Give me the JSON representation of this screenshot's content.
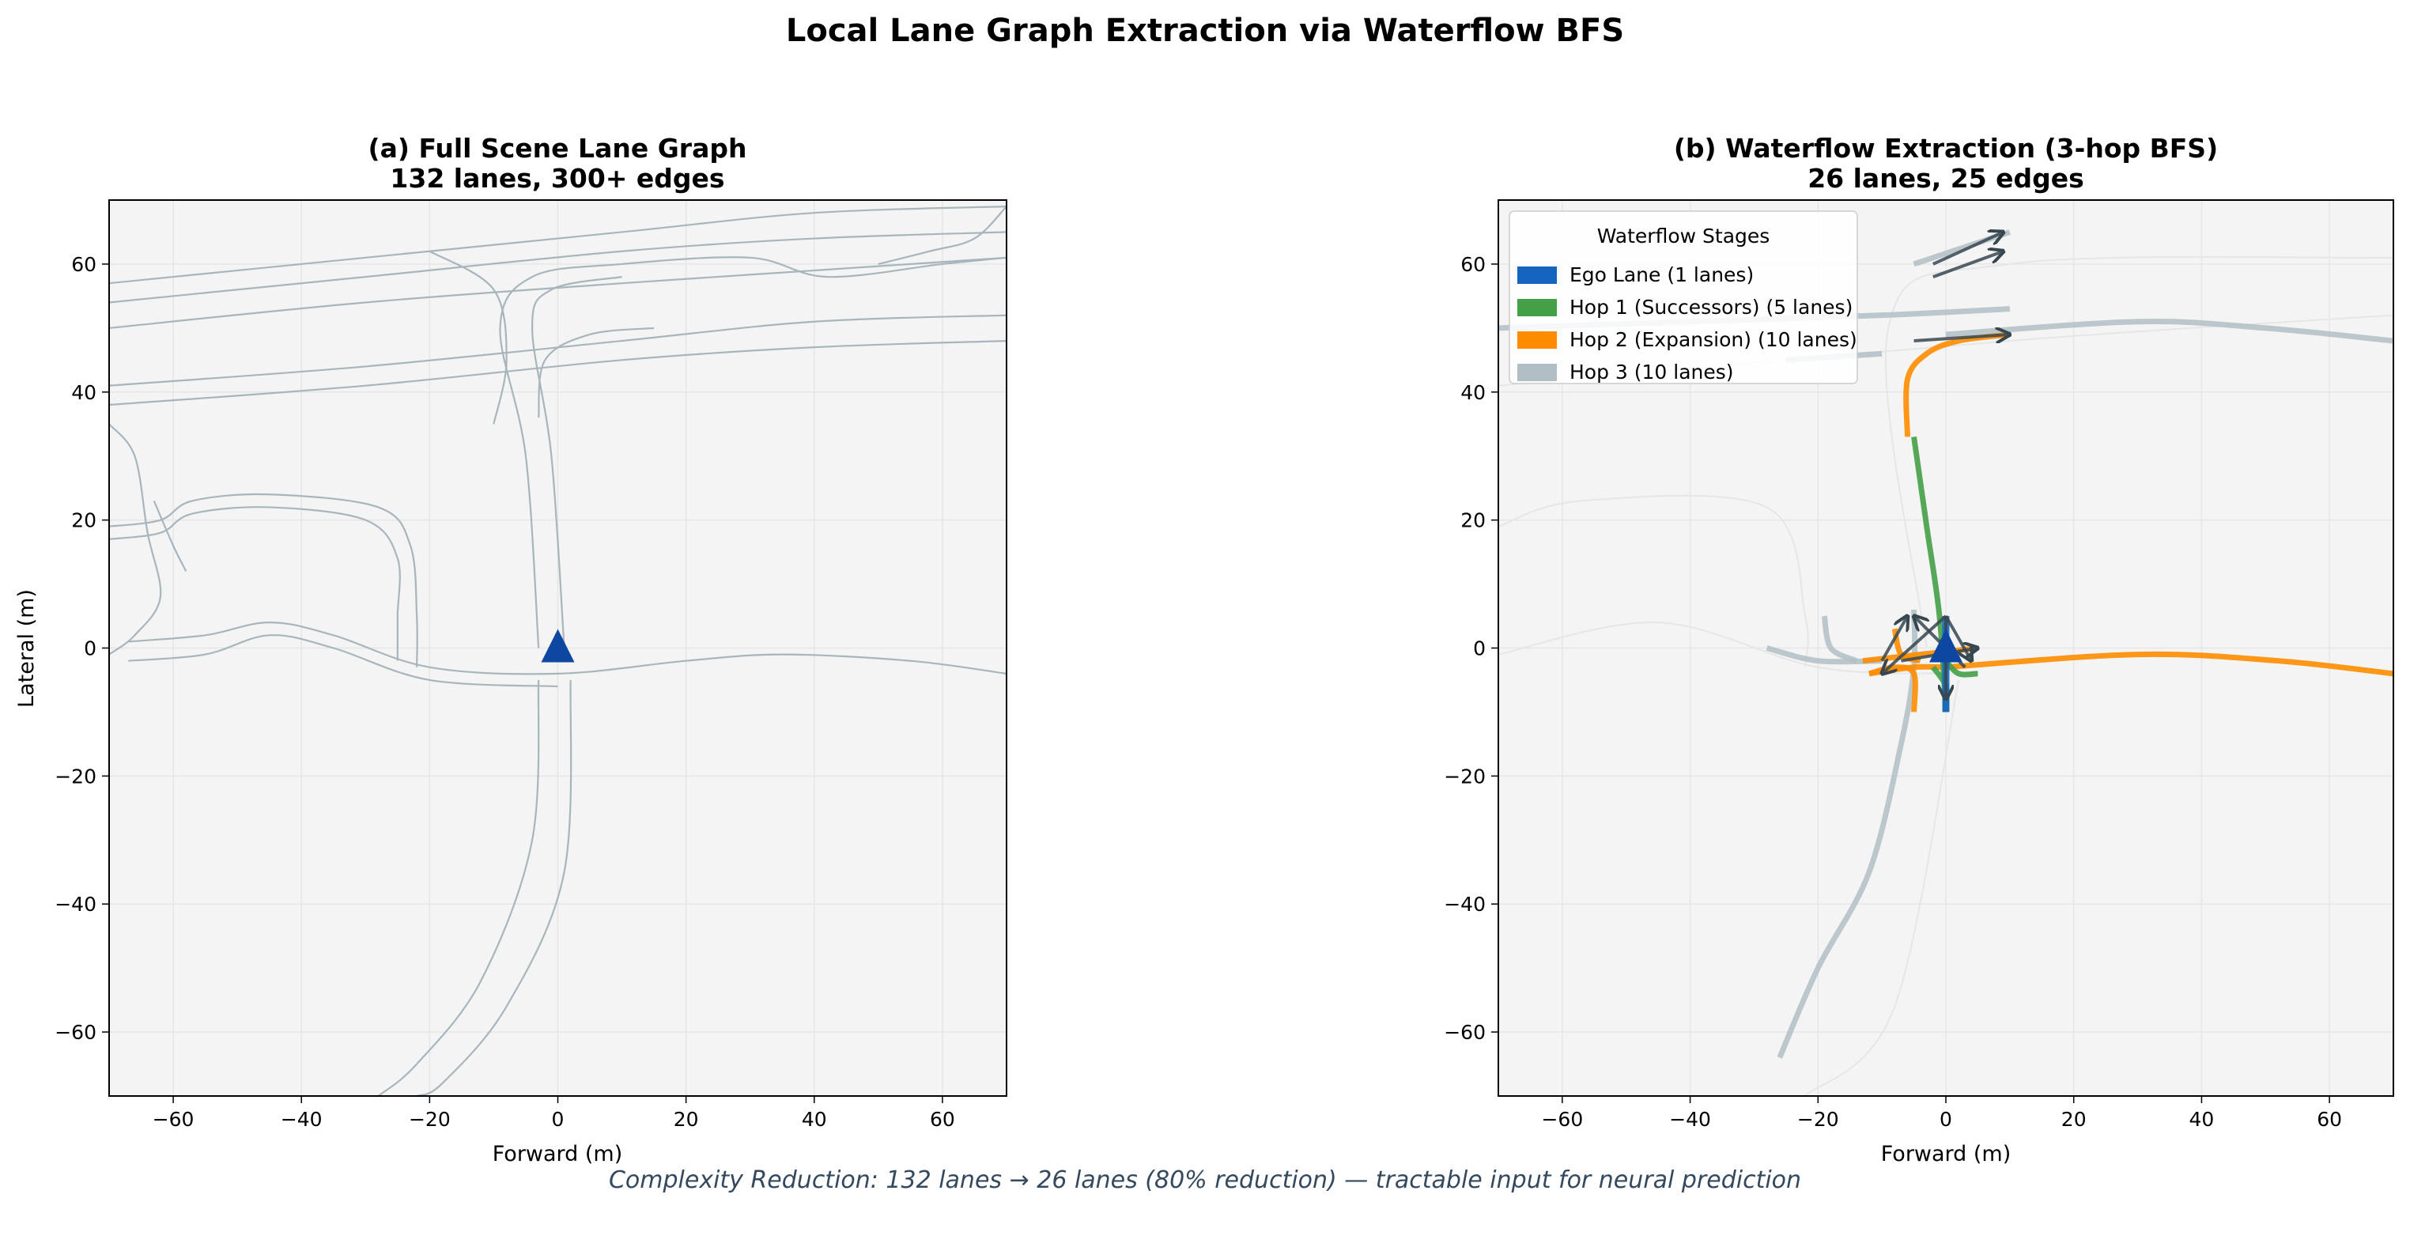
{
  "figure": {
    "title": "Local Lane Graph Extraction via Waterflow BFS",
    "caption": "Complexity Reduction: 132 lanes → 26 lanes (80% reduction) — tractable input for neural prediction"
  },
  "colors": {
    "ego": "#1565c0",
    "hop1": "#43a047",
    "hop2": "#ff8c00",
    "hop3": "#b0bec5",
    "edge": "#37474f",
    "lane": "#a8b5bd",
    "ego_marker": "#0d47a1",
    "axes_bg": "#f4f4f4"
  },
  "chart_data": [
    {
      "type": "line",
      "title_line1": "(a) Full Scene Lane Graph",
      "title_line2": "132 lanes, 300+ edges",
      "xlabel": "Forward (m)",
      "ylabel": "Lateral (m)",
      "xlim": [
        -70,
        70
      ],
      "ylim": [
        -70,
        70
      ],
      "xticks": [
        -60,
        -40,
        -20,
        0,
        20,
        40,
        60
      ],
      "yticks": [
        -60,
        -40,
        -20,
        0,
        20,
        40,
        60
      ],
      "grid": true,
      "ego_position": [
        0,
        0
      ],
      "lanes": [
        [
          [
            -70,
            57
          ],
          [
            -30,
            61
          ],
          [
            10,
            65
          ],
          [
            40,
            68
          ],
          [
            70,
            69
          ]
        ],
        [
          [
            -70,
            54
          ],
          [
            -30,
            58
          ],
          [
            10,
            62
          ],
          [
            40,
            64
          ],
          [
            70,
            65
          ]
        ],
        [
          [
            -70,
            50
          ],
          [
            -30,
            54
          ],
          [
            10,
            57
          ],
          [
            40,
            59
          ],
          [
            70,
            61
          ]
        ],
        [
          [
            -70,
            41
          ],
          [
            -30,
            44
          ],
          [
            10,
            48
          ],
          [
            40,
            51
          ],
          [
            70,
            52
          ]
        ],
        [
          [
            -70,
            38
          ],
          [
            -30,
            41
          ],
          [
            10,
            45
          ],
          [
            40,
            47
          ],
          [
            70,
            48
          ]
        ],
        [
          [
            -20,
            62
          ],
          [
            -10,
            56
          ],
          [
            -8,
            45
          ],
          [
            -10,
            35
          ]
        ],
        [
          [
            -3,
            0
          ],
          [
            -5,
            30
          ],
          [
            -9,
            50
          ],
          [
            -4,
            58
          ],
          [
            10,
            60
          ],
          [
            30,
            61
          ],
          [
            42,
            58
          ],
          [
            60,
            60
          ],
          [
            70,
            61
          ]
        ],
        [
          [
            1,
            0
          ],
          [
            -1,
            30
          ],
          [
            -4,
            50
          ],
          [
            -1,
            56
          ],
          [
            10,
            58
          ]
        ],
        [
          [
            -3,
            36
          ],
          [
            -2,
            45
          ],
          [
            5,
            49
          ],
          [
            15,
            50
          ]
        ],
        [
          [
            -67,
            1
          ],
          [
            -55,
            2
          ],
          [
            -45,
            4
          ],
          [
            -35,
            2
          ],
          [
            -20,
            -3
          ],
          [
            0,
            -4
          ],
          [
            20,
            -2
          ],
          [
            35,
            -1
          ],
          [
            55,
            -2
          ],
          [
            70,
            -4
          ]
        ],
        [
          [
            -67,
            -2
          ],
          [
            -55,
            -1
          ],
          [
            -45,
            2
          ],
          [
            -35,
            0
          ],
          [
            -20,
            -5
          ],
          [
            0,
            -6
          ]
        ],
        [
          [
            -70,
            19
          ],
          [
            -62,
            20
          ],
          [
            -57,
            23
          ],
          [
            -45,
            24
          ],
          [
            -28,
            22
          ],
          [
            -23,
            16
          ],
          [
            -22,
            5
          ],
          [
            -22,
            -3
          ]
        ],
        [
          [
            -70,
            17
          ],
          [
            -62,
            18
          ],
          [
            -57,
            21
          ],
          [
            -45,
            22
          ],
          [
            -30,
            20
          ],
          [
            -25,
            14
          ],
          [
            -25,
            5
          ],
          [
            -25,
            -2
          ]
        ],
        [
          [
            -63,
            23
          ],
          [
            -60,
            16
          ],
          [
            -58,
            12
          ]
        ],
        [
          [
            -70,
            35
          ],
          [
            -66,
            30
          ],
          [
            -64,
            18
          ],
          [
            -62,
            8
          ],
          [
            -66,
            2
          ],
          [
            -70,
            -1
          ]
        ],
        [
          [
            -3,
            -5
          ],
          [
            -4,
            -30
          ],
          [
            -12,
            -52
          ],
          [
            -22,
            -65
          ],
          [
            -28,
            -70
          ]
        ],
        [
          [
            2,
            -5
          ],
          [
            1,
            -35
          ],
          [
            -8,
            -56
          ],
          [
            -18,
            -68
          ],
          [
            -22,
            -70
          ]
        ],
        [
          [
            50,
            60
          ],
          [
            58,
            62
          ],
          [
            65,
            64
          ],
          [
            70,
            69
          ]
        ]
      ]
    },
    {
      "type": "line",
      "title_line1": "(b) Waterflow Extraction (3-hop BFS)",
      "title_line2": "26 lanes, 25 edges",
      "xlabel": "Forward (m)",
      "xlim": [
        -70,
        70
      ],
      "ylim": [
        -70,
        70
      ],
      "xticks": [
        -60,
        -40,
        -20,
        0,
        20,
        40,
        60
      ],
      "yticks": [
        -60,
        -40,
        -20,
        0,
        20,
        40,
        60
      ],
      "grid": true,
      "ego_position": [
        0,
        0
      ],
      "legend": {
        "title": "Waterflow Stages",
        "placement": "upper-left",
        "entries": [
          {
            "label": "Ego Lane (1 lanes)",
            "stage": "ego"
          },
          {
            "label": "Hop 1 (Successors) (5 lanes)",
            "stage": "hop1"
          },
          {
            "label": "Hop 2 (Expansion) (10 lanes)",
            "stage": "hop2"
          },
          {
            "label": "Hop 3 (10 lanes)",
            "stage": "hop3"
          }
        ]
      },
      "lanes": [
        {
          "stage": "hop3",
          "points": [
            [
              -26,
              -64
            ],
            [
              -20,
              -50
            ],
            [
              -12,
              -35
            ],
            [
              -7,
              -15
            ],
            [
              -5,
              -3
            ],
            [
              -5,
              6
            ]
          ]
        },
        {
          "stage": "hop3",
          "points": [
            [
              -28,
              0
            ],
            [
              -20,
              -2
            ],
            [
              -10,
              -2
            ]
          ]
        },
        {
          "stage": "hop3",
          "points": [
            [
              -19,
              5
            ],
            [
              -18,
              0
            ],
            [
              -14,
              -2
            ]
          ]
        },
        {
          "stage": "hop3",
          "points": [
            [
              -70,
              50
            ],
            [
              -40,
              51
            ],
            [
              -10,
              52
            ],
            [
              10,
              53
            ]
          ]
        },
        {
          "stage": "hop3",
          "points": [
            [
              0,
              49
            ],
            [
              30,
              51
            ],
            [
              50,
              50
            ],
            [
              70,
              48
            ]
          ]
        },
        {
          "stage": "hop3",
          "points": [
            [
              -5,
              60
            ],
            [
              10,
              65
            ]
          ]
        },
        {
          "stage": "hop3",
          "points": [
            [
              -25,
              45
            ],
            [
              -10,
              46
            ]
          ]
        },
        {
          "stage": "hop2",
          "points": [
            [
              -6,
              33
            ],
            [
              -6,
              42
            ],
            [
              -3,
              46
            ],
            [
              2,
              48
            ],
            [
              10,
              49
            ]
          ]
        },
        {
          "stage": "hop2",
          "points": [
            [
              0,
              -3
            ],
            [
              30,
              -1
            ],
            [
              52,
              -2
            ],
            [
              70,
              -4
            ]
          ]
        },
        {
          "stage": "hop2",
          "points": [
            [
              -13,
              -2
            ],
            [
              -4,
              -1
            ],
            [
              5,
              0
            ]
          ]
        },
        {
          "stage": "hop2",
          "points": [
            [
              -12,
              -4
            ],
            [
              -5,
              -3
            ],
            [
              0,
              -3
            ]
          ]
        },
        {
          "stage": "hop2",
          "points": [
            [
              -5,
              -10
            ],
            [
              -5,
              -4
            ],
            [
              -8,
              -3
            ],
            [
              -12,
              -4
            ]
          ]
        },
        {
          "stage": "hop2",
          "points": [
            [
              -8,
              3
            ],
            [
              -7,
              -1
            ],
            [
              -4,
              -2
            ]
          ]
        },
        {
          "stage": "hop1",
          "points": [
            [
              -5,
              33
            ],
            [
              -3,
              19
            ],
            [
              -1,
              5
            ],
            [
              0,
              -10
            ]
          ]
        },
        {
          "stage": "hop1",
          "points": [
            [
              0,
              -2
            ],
            [
              2,
              -4
            ],
            [
              5,
              -4
            ]
          ]
        },
        {
          "stage": "hop1",
          "points": [
            [
              -2,
              -3
            ],
            [
              0,
              -6
            ],
            [
              0,
              -10
            ]
          ]
        },
        {
          "stage": "ego",
          "points": [
            [
              0,
              5
            ],
            [
              0,
              -10
            ]
          ]
        }
      ],
      "edges": [
        [
          [
            -10,
            -2
          ],
          [
            -6,
            5
          ]
        ],
        [
          [
            0,
            5
          ],
          [
            -10,
            -4
          ]
        ],
        [
          [
            0,
            5
          ],
          [
            4,
            -2
          ]
        ],
        [
          [
            0,
            5
          ],
          [
            0,
            -8
          ]
        ],
        [
          [
            3,
            -3
          ],
          [
            -5,
            5
          ]
        ],
        [
          [
            -7,
            -2
          ],
          [
            5,
            0
          ]
        ],
        [
          [
            -2,
            60
          ],
          [
            9,
            65
          ]
        ],
        [
          [
            -2,
            58
          ],
          [
            9,
            62
          ]
        ],
        [
          [
            -5,
            48
          ],
          [
            10,
            49
          ]
        ]
      ],
      "background_lanes": [
        [
          [
            -70,
            19
          ],
          [
            -57,
            23
          ],
          [
            -28,
            22
          ],
          [
            -22,
            5
          ],
          [
            -22,
            -3
          ]
        ],
        [
          [
            -70,
            -1
          ],
          [
            -45,
            4
          ],
          [
            -20,
            -3
          ],
          [
            0,
            -4
          ]
        ],
        [
          [
            -3,
            0
          ],
          [
            -9,
            50
          ],
          [
            10,
            60
          ],
          [
            70,
            61
          ]
        ],
        [
          [
            2,
            -5
          ],
          [
            -8,
            -56
          ],
          [
            -22,
            -70
          ]
        ],
        [
          [
            -70,
            41
          ],
          [
            10,
            48
          ],
          [
            70,
            52
          ]
        ]
      ]
    }
  ]
}
